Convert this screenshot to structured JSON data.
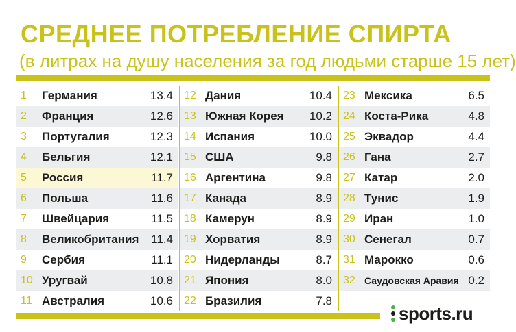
{
  "header": {
    "title": "СРЕДНЕЕ ПОТРЕБЛЕНИЕ СПИРТА",
    "subtitle": "(в литрах на душу населения за год людьми старше 15 лет)"
  },
  "colors": {
    "accent": "#c8c21a",
    "row_shade": "#ecedee",
    "highlight": "#fcf8d6",
    "text": "#1d1d1b"
  },
  "logo": {
    "text": "sports.ru"
  },
  "chart_data": {
    "type": "table",
    "title": "СРЕДНЕЕ ПОТРЕБЛЕНИЕ СПИРТА",
    "subtitle": "(в литрах на душу населения за год людьми старше 15 лет)",
    "highlighted_rank": 5,
    "rows": [
      {
        "rank": "1",
        "country": "Германия",
        "value": "13.4"
      },
      {
        "rank": "2",
        "country": "Франция",
        "value": "12.6"
      },
      {
        "rank": "3",
        "country": "Португалия",
        "value": "12.3"
      },
      {
        "rank": "4",
        "country": "Бельгия",
        "value": "12.1"
      },
      {
        "rank": "5",
        "country": "Россия",
        "value": "11.7"
      },
      {
        "rank": "6",
        "country": "Польша",
        "value": "11.6"
      },
      {
        "rank": "7",
        "country": "Швейцария",
        "value": "11.5"
      },
      {
        "rank": "8",
        "country": "Великобритания",
        "value": "11.4"
      },
      {
        "rank": "9",
        "country": "Сербия",
        "value": "11.1"
      },
      {
        "rank": "10",
        "country": "Уругвай",
        "value": "10.8"
      },
      {
        "rank": "11",
        "country": "Австралия",
        "value": "10.6"
      },
      {
        "rank": "12",
        "country": "Дания",
        "value": "10.4"
      },
      {
        "rank": "13",
        "country": "Южная Корея",
        "value": "10.2"
      },
      {
        "rank": "14",
        "country": "Испания",
        "value": "10.0"
      },
      {
        "rank": "15",
        "country": "США",
        "value": "9.8"
      },
      {
        "rank": "16",
        "country": "Аргентина",
        "value": "9.8"
      },
      {
        "rank": "17",
        "country": "Канада",
        "value": "8.9"
      },
      {
        "rank": "18",
        "country": "Камерун",
        "value": "8.9"
      },
      {
        "rank": "19",
        "country": "Хорватия",
        "value": "8.9"
      },
      {
        "rank": "20",
        "country": "Нидерланды",
        "value": "8.7"
      },
      {
        "rank": "21",
        "country": "Япония",
        "value": "8.0"
      },
      {
        "rank": "22",
        "country": "Бразилия",
        "value": "7.8"
      },
      {
        "rank": "23",
        "country": "Мексика",
        "value": "6.5"
      },
      {
        "rank": "24",
        "country": "Коста-Рика",
        "value": "4.8"
      },
      {
        "rank": "25",
        "country": "Эквадор",
        "value": "4.4"
      },
      {
        "rank": "26",
        "country": "Гана",
        "value": "2.7"
      },
      {
        "rank": "27",
        "country": "Катар",
        "value": "2.0"
      },
      {
        "rank": "28",
        "country": "Тунис",
        "value": "1.9"
      },
      {
        "rank": "29",
        "country": "Иран",
        "value": "1.0"
      },
      {
        "rank": "30",
        "country": "Сенегал",
        "value": "0.7"
      },
      {
        "rank": "31",
        "country": "Марокко",
        "value": "0.6"
      },
      {
        "rank": "32",
        "country": "Саудовская Аравия",
        "value": "0.2"
      }
    ]
  }
}
